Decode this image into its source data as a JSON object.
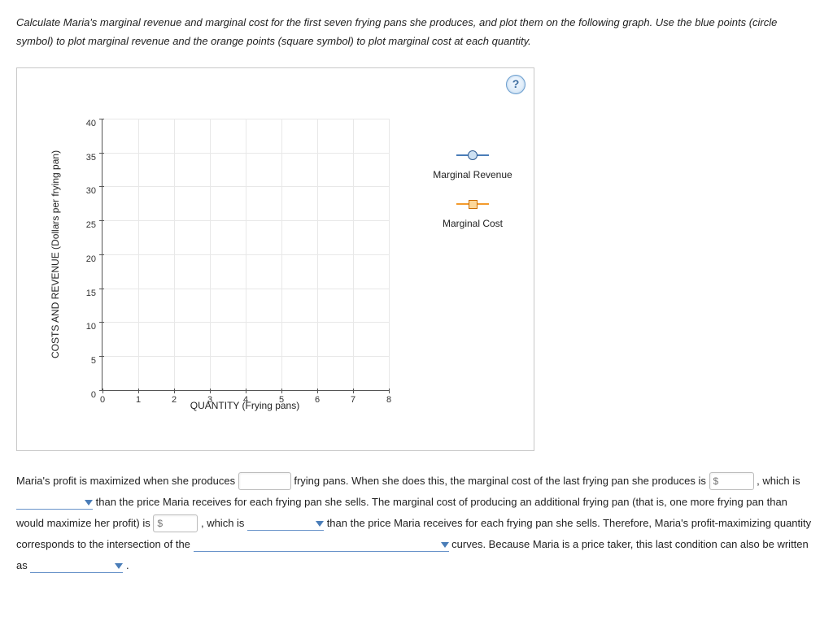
{
  "instructions": "Calculate Maria's marginal revenue and marginal cost for the first seven frying pans she produces, and plot them on the following graph. Use the blue points (circle symbol) to plot marginal revenue and the orange points (square symbol) to plot marginal cost at each quantity.",
  "chart": {
    "type": "scatter",
    "y_axis_title": "COSTS AND REVENUE (Dollars per frying pan)",
    "x_axis_title": "QUANTITY (Frying pans)",
    "x_ticks": [
      0,
      1,
      2,
      3,
      4,
      5,
      6,
      7,
      8
    ],
    "y_ticks": [
      0,
      5,
      10,
      15,
      20,
      25,
      30,
      35,
      40
    ],
    "xlim": [
      0,
      8
    ],
    "ylim": [
      0,
      40
    ],
    "grid_color": "#e8e8e8",
    "axis_color": "#555555",
    "background_color": "#ffffff",
    "tick_fontsize": 11,
    "axis_title_fontsize": 12,
    "help_label": "?",
    "legend": {
      "mr": {
        "label": "Marginal Revenue",
        "symbol": "circle",
        "line_color": "#4a7db8",
        "fill_color": "#cde1f3",
        "border_color": "#2e5b92"
      },
      "mc": {
        "label": "Marginal Cost",
        "symbol": "square",
        "line_color": "#f39a2c",
        "fill_color": "#fcd79a",
        "border_color": "#cc6d00"
      }
    }
  },
  "fill": {
    "t1": "Maria's profit is maximized when she produces",
    "t2": "frying pans. When she does this, the marginal cost of the last frying pan she produces is",
    "t3": ", which is",
    "t4": "than the price Maria receives for each frying pan she sells. The marginal cost of producing an additional frying pan (that is, one more frying pan than would maximize her profit) is",
    "t5": ", which is",
    "t6": "than the price Maria receives for each frying pan she sells. Therefore, Maria's profit-maximizing quantity corresponds to the intersection of the",
    "t7": "curves. Because Maria is a price taker, this last condition can also be written as",
    "period": ".",
    "dollar": "$"
  }
}
